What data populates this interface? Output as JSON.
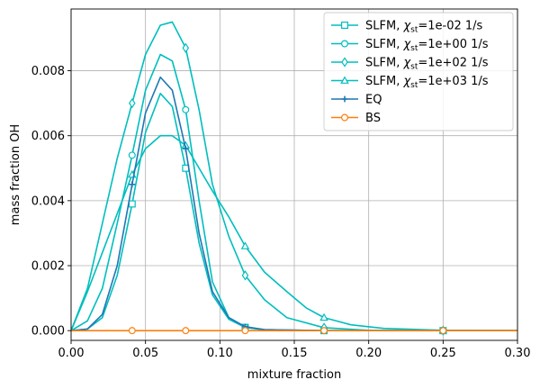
{
  "chart_data": {
    "type": "line",
    "xlabel": "mixture fraction",
    "ylabel": "mass fraction OH",
    "xlim": [
      0,
      0.3
    ],
    "ylim": [
      -0.0003,
      0.0099
    ],
    "xticks": [
      "0.00",
      "0.05",
      "0.10",
      "0.15",
      "0.20",
      "0.25",
      "0.30"
    ],
    "yticks": [
      "0.000",
      "0.002",
      "0.004",
      "0.006",
      "0.008"
    ],
    "grid": true,
    "legend_position": "top-right",
    "series": [
      {
        "name": "SLFM, χst=1e-02 1/s",
        "legend_main": "SLFM, ",
        "legend_chi": "χ",
        "legend_sub": "st",
        "legend_rest": "=1e-02 1/s",
        "color": "#00bebe",
        "marker": "square",
        "x": [
          0,
          0.011,
          0.021,
          0.031,
          0.041,
          0.05,
          0.06,
          0.068,
          0.077,
          0.086,
          0.095,
          0.106,
          0.117,
          0.13,
          0.17,
          0.25,
          0.3
        ],
        "y": [
          0,
          5e-05,
          0.0004,
          0.0017,
          0.0039,
          0.0061,
          0.0073,
          0.0069,
          0.005,
          0.0027,
          0.0011,
          0.00035,
          0.0001,
          2e-05,
          0,
          0,
          0
        ],
        "markers_x": [
          0.041,
          0.077,
          0.117,
          0.17,
          0.25
        ]
      },
      {
        "name": "SLFM, χst=1e+00 1/s",
        "legend_main": "SLFM, ",
        "legend_chi": "χ",
        "legend_sub": "st",
        "legend_rest": "=1e+00 1/s",
        "color": "#00bebe",
        "marker": "circle",
        "x": [
          0,
          0.011,
          0.021,
          0.031,
          0.041,
          0.05,
          0.06,
          0.068,
          0.077,
          0.086,
          0.095,
          0.106,
          0.117,
          0.13,
          0.17,
          0.25,
          0.3
        ],
        "y": [
          0,
          0.0003,
          0.0013,
          0.0033,
          0.0054,
          0.0074,
          0.0085,
          0.0083,
          0.0068,
          0.004,
          0.0015,
          0.0004,
          0.0001,
          3e-05,
          0,
          0,
          0
        ],
        "markers_x": [
          0.041,
          0.077,
          0.117,
          0.17,
          0.25
        ]
      },
      {
        "name": "SLFM, χst=1e+02 1/s",
        "legend_main": "SLFM, ",
        "legend_chi": "χ",
        "legend_sub": "st",
        "legend_rest": "=1e+02 1/s",
        "color": "#00bebe",
        "marker": "diamond",
        "x": [
          0,
          0.011,
          0.021,
          0.031,
          0.041,
          0.05,
          0.06,
          0.068,
          0.077,
          0.086,
          0.095,
          0.106,
          0.117,
          0.13,
          0.145,
          0.17,
          0.2,
          0.25,
          0.3
        ],
        "y": [
          0,
          0.0013,
          0.0033,
          0.0053,
          0.007,
          0.0085,
          0.0094,
          0.0095,
          0.0087,
          0.0068,
          0.0045,
          0.0029,
          0.0017,
          0.00095,
          0.0004,
          9e-05,
          1e-05,
          0,
          0
        ],
        "markers_x": [
          0.041,
          0.077,
          0.117,
          0.17,
          0.25
        ]
      },
      {
        "name": "SLFM, χst=1e+03 1/s",
        "legend_main": "SLFM, ",
        "legend_chi": "χ",
        "legend_sub": "st",
        "legend_rest": "=1e+03 1/s",
        "color": "#00bebe",
        "marker": "triangle",
        "x": [
          0,
          0.011,
          0.021,
          0.031,
          0.041,
          0.05,
          0.06,
          0.068,
          0.077,
          0.086,
          0.095,
          0.106,
          0.117,
          0.13,
          0.145,
          0.158,
          0.17,
          0.188,
          0.21,
          0.25,
          0.3
        ],
        "y": [
          0,
          0.0012,
          0.0024,
          0.0036,
          0.0048,
          0.0056,
          0.006,
          0.006,
          0.0057,
          0.005,
          0.0043,
          0.0035,
          0.0026,
          0.0018,
          0.0012,
          0.0007,
          0.0004,
          0.00018,
          7e-05,
          1e-05,
          0
        ],
        "markers_x": [
          0.041,
          0.077,
          0.117,
          0.17,
          0.25
        ]
      },
      {
        "name": "EQ",
        "legend_main": "EQ",
        "color": "#1f77b4",
        "marker": "plus",
        "x": [
          0,
          0.011,
          0.021,
          0.031,
          0.041,
          0.05,
          0.06,
          0.068,
          0.077,
          0.086,
          0.095,
          0.106,
          0.117,
          0.13,
          0.17,
          0.25,
          0.3
        ],
        "y": [
          0,
          5e-05,
          0.0005,
          0.002,
          0.0045,
          0.0067,
          0.0078,
          0.0074,
          0.0056,
          0.003,
          0.0012,
          0.0004,
          0.00012,
          3e-05,
          0,
          0,
          0
        ],
        "markers_x": [
          0.041,
          0.077,
          0.117,
          0.17,
          0.25
        ]
      },
      {
        "name": "BS",
        "legend_main": "BS",
        "color": "#ff7f0e",
        "marker": "circle",
        "x": [
          0,
          0.05,
          0.1,
          0.15,
          0.2,
          0.25,
          0.3
        ],
        "y": [
          0,
          0,
          0,
          0,
          0,
          0,
          0
        ],
        "markers_x": [
          0.041,
          0.077,
          0.117,
          0.17,
          0.25
        ]
      }
    ]
  }
}
